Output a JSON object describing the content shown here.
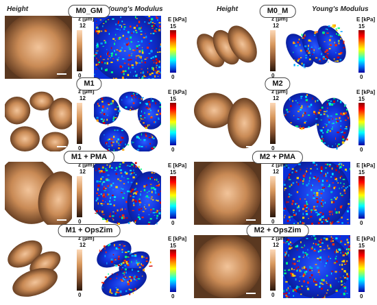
{
  "headers": {
    "left_height": "Height",
    "left_modulus": "Young's Modulus",
    "right_height": "Height",
    "right_modulus": "Young's Modulus"
  },
  "height_scale": {
    "unit_label": "z [μm]",
    "max": "12",
    "min": "0"
  },
  "modulus_scale": {
    "unit_label": "E [kPa]",
    "max": "15",
    "min": "0"
  },
  "rows": [
    {
      "left": "M0_GM",
      "right": "M0_M"
    },
    {
      "left": "M1",
      "right": "M2"
    },
    {
      "left": "M1 + PMA",
      "right": "M2 + PMA"
    },
    {
      "left": "M1 + OpsZim",
      "right": "M2 + OpsZim"
    }
  ],
  "colors": {
    "modulus_background": "#0a2fd9",
    "height_background": "#ffffff"
  }
}
